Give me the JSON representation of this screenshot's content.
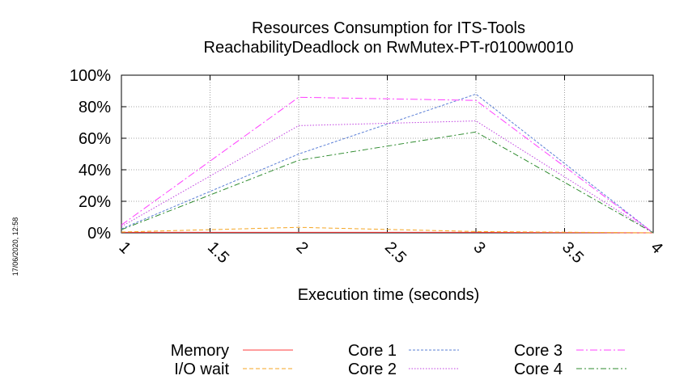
{
  "chart_data": {
    "type": "line",
    "title": "Resources Consumption for ITS-Tools",
    "subtitle": "ReachabilityDeadlock on RwMutex-PT-r0100w0010",
    "xlabel": "Execution time (seconds)",
    "ylabel": "",
    "xlim": [
      1,
      4
    ],
    "ylim": [
      0,
      100
    ],
    "xticks": [
      "1",
      "1.5",
      "2",
      "2.5",
      "3",
      "3.5",
      "4"
    ],
    "yticks": [
      "0%",
      "20%",
      "40%",
      "60%",
      "80%",
      "100%"
    ],
    "grid": true,
    "legend_position": "bottom",
    "x": [
      1,
      2,
      3,
      4
    ],
    "series": [
      {
        "name": "Memory",
        "color": "#ff3b3b",
        "dash": "",
        "values": [
          0.3,
          0.3,
          0.3,
          0
        ]
      },
      {
        "name": "I/O wait",
        "color": "#f5a623",
        "dash": "5,3",
        "values": [
          0.5,
          3.5,
          0.8,
          0
        ]
      },
      {
        "name": "Core 1",
        "color": "#5b7fd6",
        "dash": "3,2",
        "values": [
          2.5,
          50,
          88,
          0
        ]
      },
      {
        "name": "Core 2",
        "color": "#c040e0",
        "dash": "1.5,2",
        "values": [
          4,
          68,
          71,
          0
        ]
      },
      {
        "name": "Core 3",
        "color": "#ff40ff",
        "dash": "9,3,2,3",
        "values": [
          5,
          86,
          84,
          0
        ]
      },
      {
        "name": "Core 4",
        "color": "#2e8b2e",
        "dash": "7,3,2,3",
        "values": [
          2,
          46,
          64,
          0
        ]
      }
    ]
  },
  "timestamp": "17/06/2020, 12:58"
}
